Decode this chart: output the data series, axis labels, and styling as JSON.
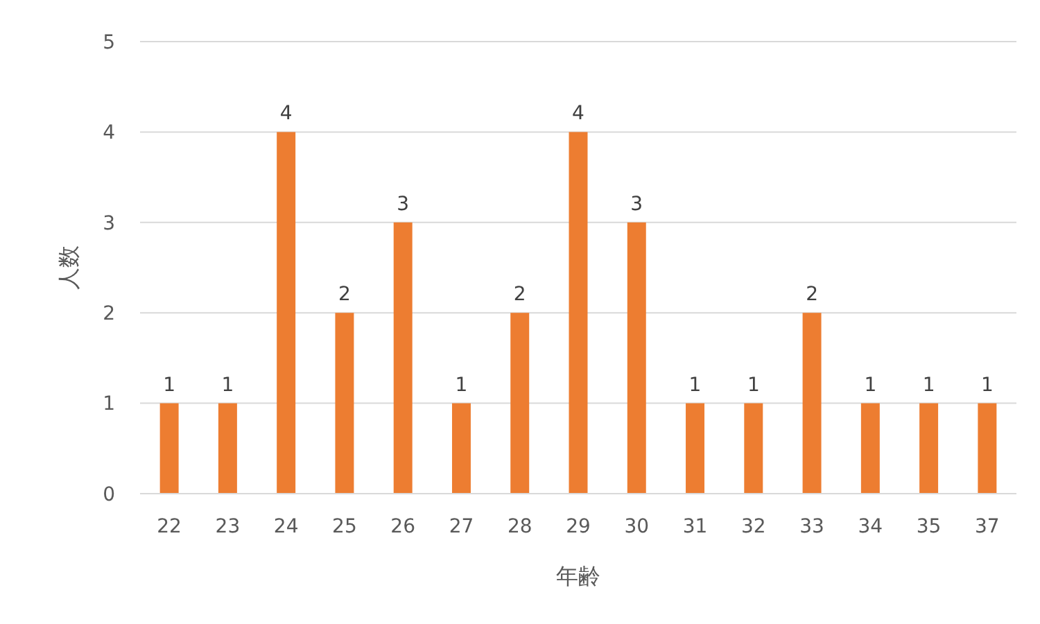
{
  "chart_data": {
    "type": "bar",
    "xlabel": "年齢",
    "ylabel": "人数",
    "categories": [
      "22",
      "23",
      "24",
      "25",
      "26",
      "27",
      "28",
      "29",
      "30",
      "31",
      "32",
      "33",
      "34",
      "35",
      "37"
    ],
    "values": [
      1,
      1,
      4,
      2,
      3,
      1,
      2,
      4,
      3,
      1,
      1,
      2,
      1,
      1,
      1
    ],
    "color": "#ed7d31",
    "ylim": [
      0,
      5
    ],
    "yticks": [
      0,
      1,
      2,
      3,
      4,
      5
    ],
    "grid": "y",
    "data_labels": true
  }
}
